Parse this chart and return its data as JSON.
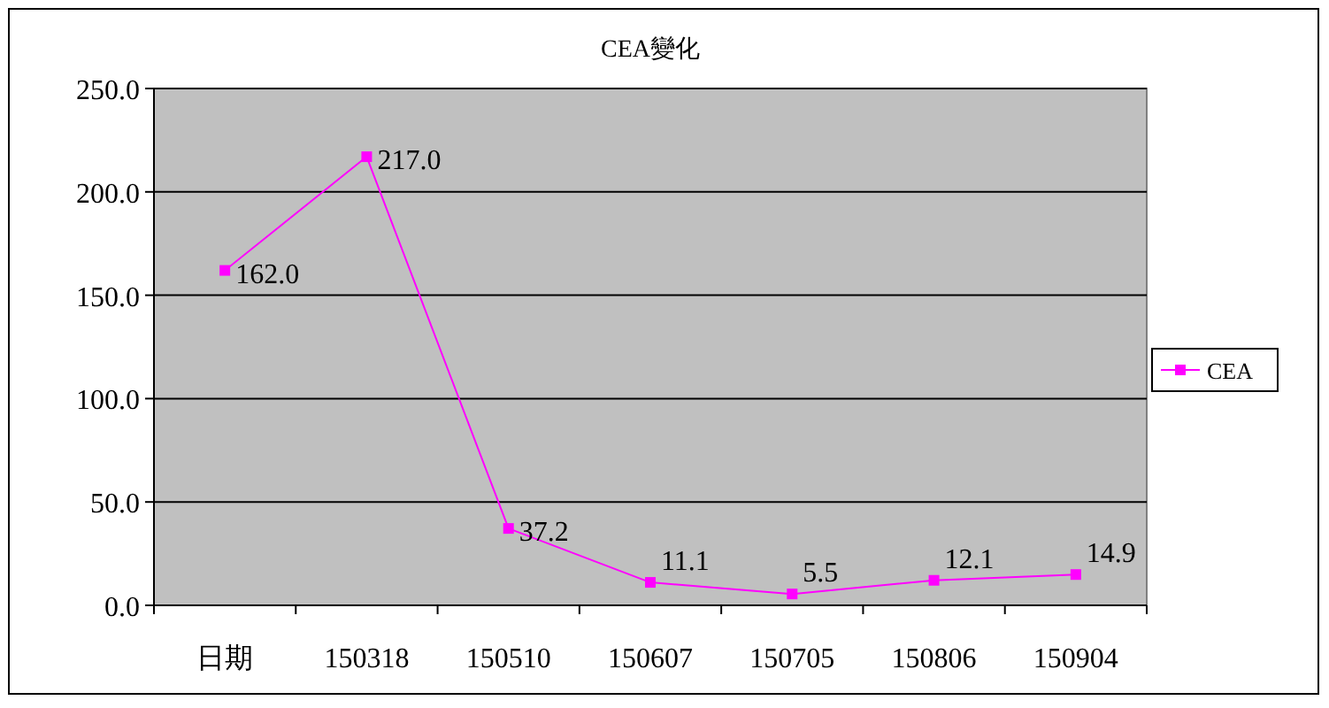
{
  "chart_data": {
    "type": "line",
    "title": "CEA變化",
    "categories": [
      "日期",
      "150318",
      "150510",
      "150607",
      "150705",
      "150806",
      "150904"
    ],
    "series": [
      {
        "name": "CEA",
        "color": "#ff00ff",
        "values": [
          162.0,
          217.0,
          37.2,
          11.1,
          5.5,
          12.1,
          14.9
        ],
        "value_labels": [
          "162.0",
          "217.0",
          "37.2",
          "11.1",
          "5.5",
          "12.1",
          "14.9"
        ]
      }
    ],
    "ylim": [
      0,
      250
    ],
    "yticks": [
      {
        "value": 0,
        "label": "0.0"
      },
      {
        "value": 50,
        "label": "50.0"
      },
      {
        "value": 100,
        "label": "100.0"
      },
      {
        "value": 150,
        "label": "150.0"
      },
      {
        "value": 200,
        "label": "200.0"
      },
      {
        "value": 250,
        "label": "250.0"
      }
    ],
    "grid": "y",
    "legend": "right",
    "marker": "square",
    "line_style": "solid"
  }
}
